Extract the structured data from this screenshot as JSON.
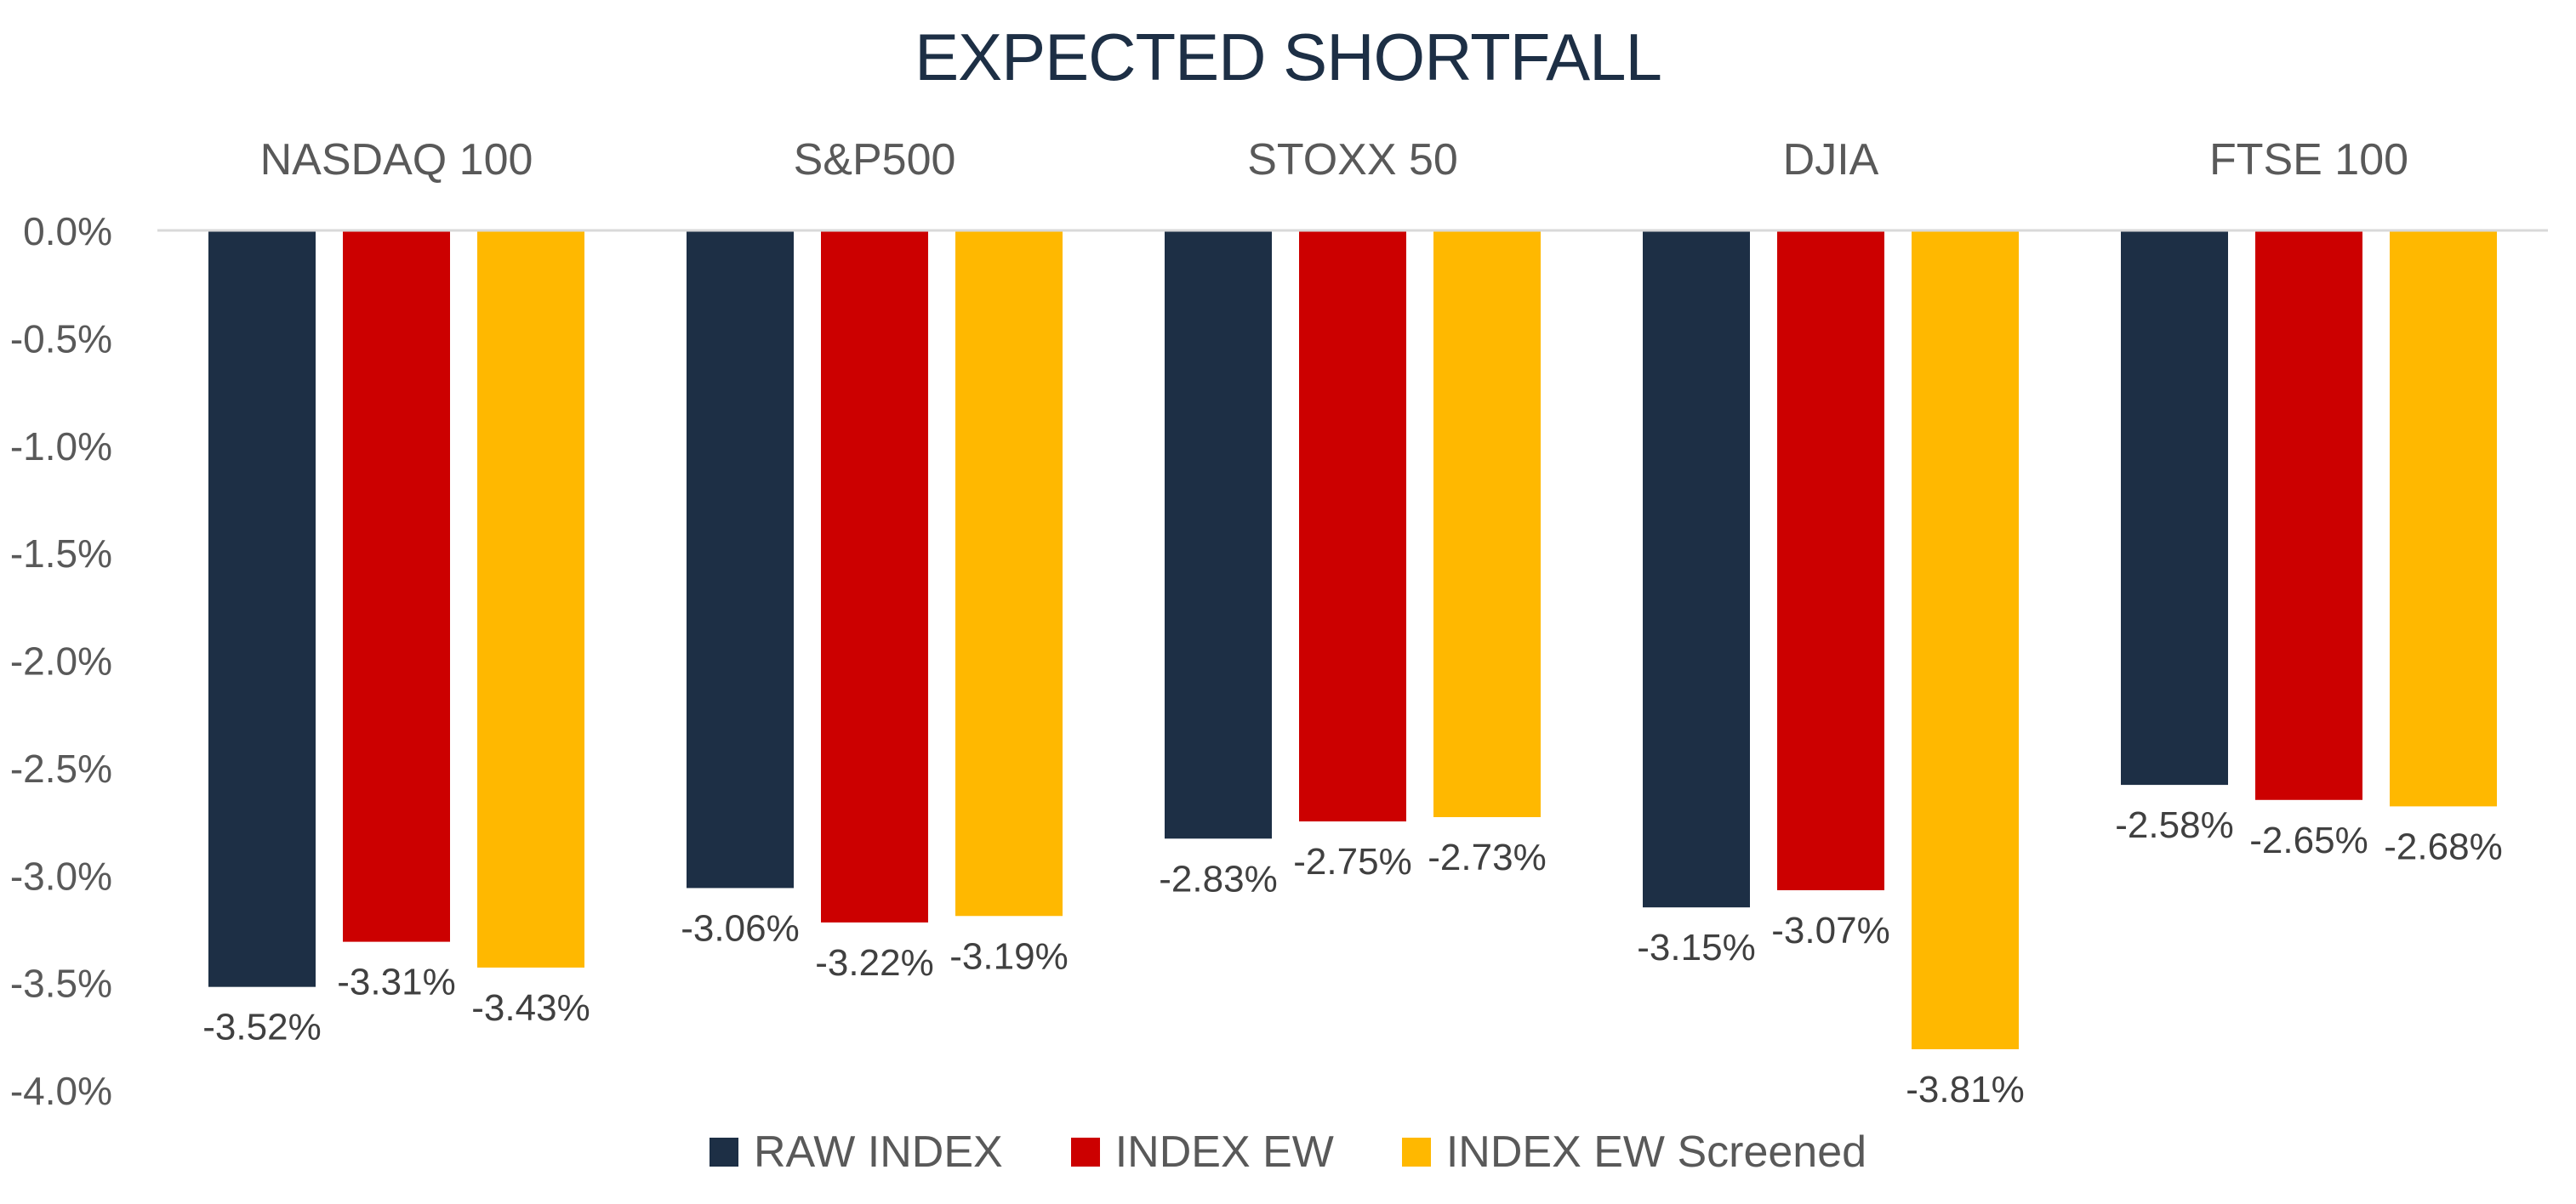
{
  "chart_data": {
    "type": "bar",
    "title": "EXPECTED SHORTFALL",
    "categories": [
      "NASDAQ 100",
      "S&P500",
      "STOXX 50",
      "DJIA",
      "FTSE 100"
    ],
    "series": [
      {
        "name": "RAW INDEX",
        "color": "#1d2f45",
        "values": [
          -3.52,
          -3.06,
          -2.83,
          -3.15,
          -2.58
        ],
        "labels": [
          "-3.52%",
          "-3.06%",
          "-2.83%",
          "-3.15%",
          "-2.58%"
        ]
      },
      {
        "name": "INDEX EW",
        "color": "#cc0000",
        "values": [
          -3.31,
          -3.22,
          -2.75,
          -3.07,
          -2.65
        ],
        "labels": [
          "-3.31%",
          "-3.22%",
          "-2.75%",
          "-3.07%",
          "-2.65%"
        ]
      },
      {
        "name": "INDEX EW Screened",
        "color": "#ffb800",
        "values": [
          -3.43,
          -3.19,
          -2.73,
          -3.81,
          -2.68
        ],
        "labels": [
          "-3.43%",
          "-3.19%",
          "-2.73%",
          "-3.81%",
          "-2.68%"
        ]
      }
    ],
    "ylim": [
      -4.0,
      0.0
    ],
    "yticks": [
      0.0,
      -0.5,
      -1.0,
      -1.5,
      -2.0,
      -2.5,
      -3.0,
      -3.5,
      -4.0
    ],
    "ytick_labels": [
      "0.0%",
      "-0.5%",
      "-1.0%",
      "-1.5%",
      "-2.0%",
      "-2.5%",
      "-3.0%",
      "-3.5%",
      "-4.0%"
    ],
    "category_label_position": "top",
    "grid": false,
    "legend_position": "bottom"
  }
}
